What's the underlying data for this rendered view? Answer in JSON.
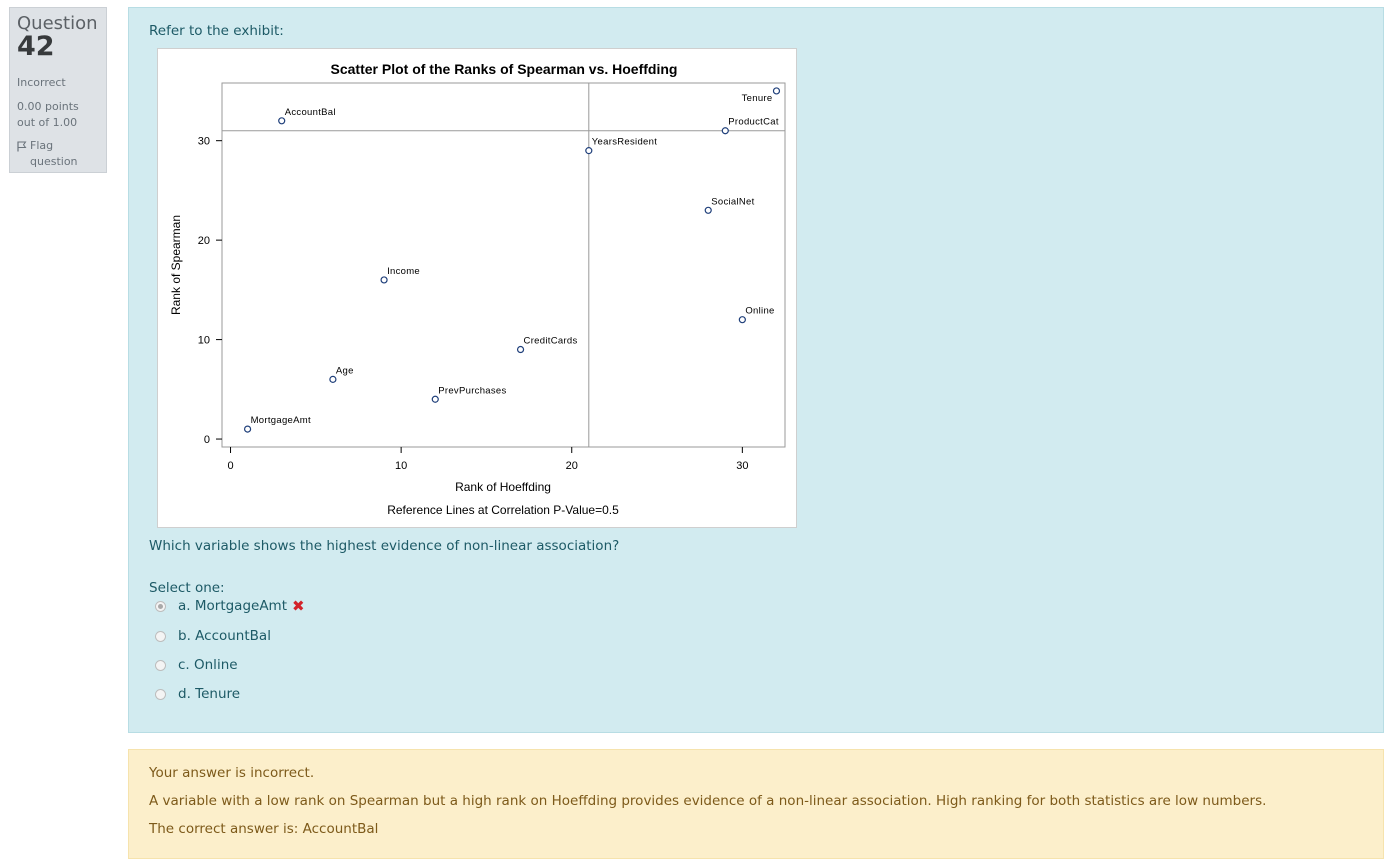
{
  "question_info": {
    "label": "Question",
    "number": "42",
    "state": "Incorrect",
    "grade": "0.00 points out of 1.00",
    "flag_label": "Flag question"
  },
  "formulation": {
    "intro": "Refer to the exhibit:",
    "question_text": "Which variable shows the highest evidence of non-linear association?",
    "select_prompt": "Select one:",
    "options": [
      {
        "label": "a. MortgageAmt",
        "checked": true,
        "marked_incorrect": true
      },
      {
        "label": "b. AccountBal",
        "checked": false
      },
      {
        "label": "c. Online",
        "checked": false
      },
      {
        "label": "d. Tenure",
        "checked": false
      }
    ],
    "incorrect_mark": "✖"
  },
  "feedback": {
    "result": "Your answer is incorrect.",
    "explanation": "A variable with a low rank on Spearman but a high rank on Hoeffding provides evidence of a non-linear association. High ranking for both statistics are low numbers.",
    "correct_answer": "The correct answer is: AccountBal"
  },
  "chart_data": {
    "type": "scatter",
    "title": "Scatter Plot of the Ranks of Spearman vs. Hoeffding",
    "xlabel": "Rank of Hoeffding",
    "ylabel": "Rank of Spearman",
    "footnote": "Reference Lines at Correlation P-Value=0.5",
    "xlim": [
      -0.5,
      32.5
    ],
    "ylim": [
      -0.8,
      35.8
    ],
    "xticks": [
      0,
      10,
      20,
      30
    ],
    "yticks": [
      0,
      10,
      20,
      30
    ],
    "reference_lines": {
      "x": 21,
      "y": 31
    },
    "grid": false,
    "points": [
      {
        "label": "MortgageAmt",
        "x": 1,
        "y": 1
      },
      {
        "label": "AccountBal",
        "x": 3,
        "y": 32
      },
      {
        "label": "Age",
        "x": 6,
        "y": 6
      },
      {
        "label": "Income",
        "x": 9,
        "y": 16
      },
      {
        "label": "PrevPurchases",
        "x": 12,
        "y": 4
      },
      {
        "label": "CreditCards",
        "x": 17,
        "y": 9
      },
      {
        "label": "YearsResident",
        "x": 21,
        "y": 29
      },
      {
        "label": "SocialNet",
        "x": 28,
        "y": 23
      },
      {
        "label": "ProductCat",
        "x": 29,
        "y": 31
      },
      {
        "label": "Online",
        "x": 30,
        "y": 12
      },
      {
        "label": "Tenure",
        "x": 32,
        "y": 35
      }
    ],
    "marker_color": "#1f3f7a"
  }
}
